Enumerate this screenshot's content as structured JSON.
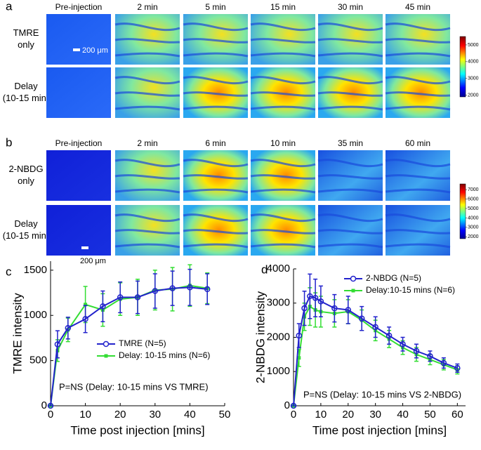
{
  "panels": [
    {
      "label": "a",
      "columns": [
        "Pre-injection",
        "2 min",
        "5 min",
        "15 min",
        "30 min",
        "45 min"
      ],
      "rows": [
        [
          "TMRE",
          "only"
        ],
        [
          "Delay",
          "(10-15 min)"
        ]
      ],
      "scale_bar": "200 μm",
      "colorbar": {
        "range": [
          1900,
          5500
        ],
        "ticks": [
          2000,
          3000,
          4000,
          5000
        ]
      }
    },
    {
      "label": "b",
      "columns": [
        "Pre-injection",
        "2 min",
        "6 min",
        "10 min",
        "35 min",
        "60 min"
      ],
      "rows": [
        [
          "2-NBDG",
          "only"
        ],
        [
          "Delay",
          "(10-15 min)"
        ]
      ],
      "scale_bar": "200 μm",
      "colorbar": {
        "range": [
          1800,
          7600
        ],
        "ticks": [
          2000,
          3000,
          4000,
          5000,
          6000,
          7000
        ]
      }
    }
  ],
  "chart_data": [
    {
      "type": "line",
      "panel_label": "c",
      "xlabel": "Time post injection [mins]",
      "ylabel": "TMRE intensity",
      "annotation": "P=NS  (Delay: 10-15 mins VS TMRE)",
      "x": [
        0,
        2,
        5,
        10,
        15,
        20,
        25,
        30,
        35,
        40,
        45
      ],
      "series": [
        {
          "name": "TMRE (N=5)",
          "color": "#2222cc",
          "marker": "circle",
          "values": [
            0,
            680,
            860,
            960,
            1100,
            1200,
            1200,
            1270,
            1300,
            1310,
            1290
          ],
          "errors": [
            0,
            150,
            120,
            150,
            170,
            170,
            180,
            190,
            190,
            200,
            170
          ]
        },
        {
          "name": "Delay: 10-15 mins (N=6)",
          "color": "#33dd33",
          "marker": "square",
          "values": [
            0,
            610,
            840,
            1120,
            1060,
            1180,
            1200,
            1280,
            1290,
            1330,
            1300
          ],
          "errors": [
            0,
            120,
            130,
            200,
            180,
            180,
            200,
            220,
            240,
            230,
            170
          ]
        }
      ],
      "xlim": [
        0,
        50
      ],
      "xticks": [
        0,
        10,
        20,
        30,
        40,
        50
      ],
      "ylim": [
        0,
        1600
      ],
      "yticks": [
        0,
        500,
        1000,
        1500
      ],
      "grid": false
    },
    {
      "type": "line",
      "panel_label": "d",
      "xlabel": "Time post injection [mins]",
      "ylabel": "2-NBDG intensity",
      "annotation": "P=NS   (Delay: 10-15 mins VS 2-NBDG)",
      "x": [
        0,
        2,
        4,
        6,
        8,
        10,
        15,
        20,
        25,
        30,
        35,
        40,
        45,
        50,
        55,
        60
      ],
      "series": [
        {
          "name": "2-NBDG (N=5)",
          "color": "#2222cc",
          "marker": "circle",
          "values": [
            0,
            2050,
            2850,
            3200,
            3150,
            3050,
            2850,
            2800,
            2550,
            2300,
            2050,
            1800,
            1600,
            1450,
            1250,
            1100
          ],
          "errors": [
            0,
            350,
            500,
            650,
            550,
            450,
            400,
            400,
            350,
            300,
            250,
            200,
            200,
            150,
            150,
            120
          ]
        },
        {
          "name": "Delay:10-15 mins (N=6)",
          "color": "#33dd33",
          "marker": "square",
          "values": [
            0,
            1400,
            2600,
            2900,
            2800,
            2750,
            2700,
            2750,
            2500,
            2200,
            1950,
            1700,
            1500,
            1350,
            1200,
            1050
          ],
          "errors": [
            0,
            250,
            400,
            550,
            500,
            450,
            400,
            350,
            300,
            300,
            250,
            200,
            200,
            150,
            150,
            120
          ]
        }
      ],
      "xlim": [
        0,
        63
      ],
      "xticks": [
        0,
        10,
        20,
        30,
        40,
        50,
        60
      ],
      "ylim": [
        0,
        4000
      ],
      "yticks": [
        0,
        1000,
        2000,
        3000,
        4000
      ],
      "grid": false
    }
  ]
}
